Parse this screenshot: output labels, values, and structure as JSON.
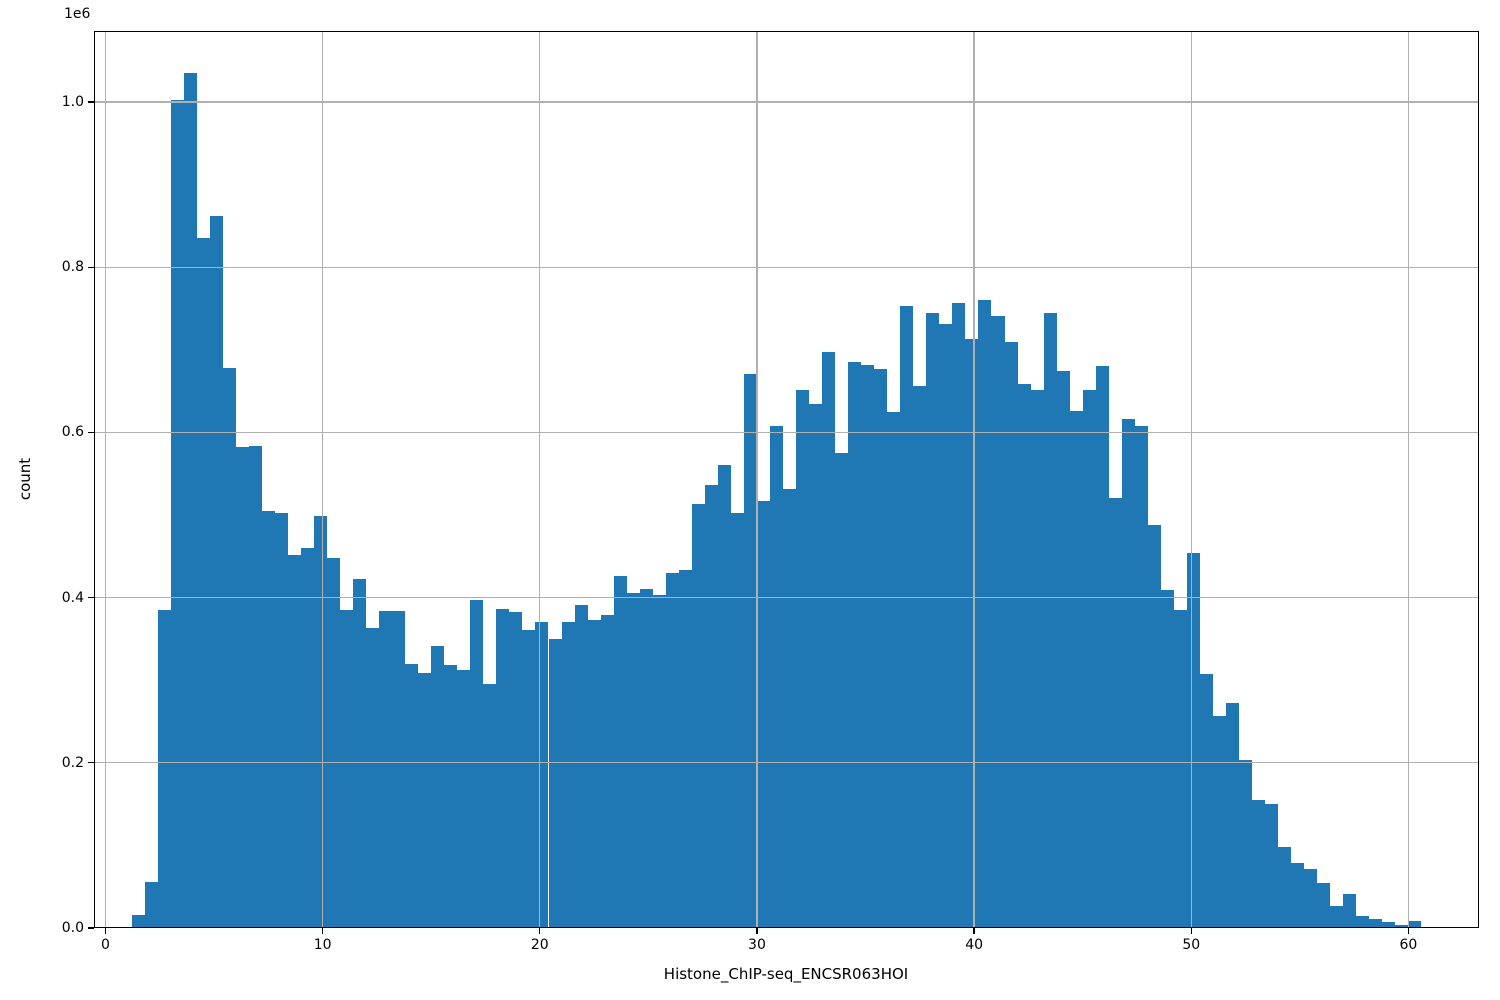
{
  "chart_data": {
    "type": "bar",
    "subtype": "histogram",
    "title": "",
    "xlabel": "Histone_ChIP-seq_ENCSR063HOI",
    "ylabel": "count",
    "offset_text": "1e6",
    "bar_color": "#1f77b4",
    "grid": true,
    "grid_color": "#b0b0b0",
    "legend": "none",
    "bin_start": 1.2,
    "bin_width": 0.6,
    "counts": [
      16000,
      56000,
      385000,
      1002000,
      1035000,
      835000,
      862000,
      678000,
      582000,
      584000,
      505000,
      503000,
      452000,
      460000,
      499000,
      448000,
      385000,
      423000,
      363000,
      384000,
      384000,
      320000,
      309000,
      341000,
      319000,
      312000,
      397000,
      296000,
      386000,
      383000,
      361000,
      371000,
      350000,
      370000,
      391000,
      373000,
      379000,
      426000,
      406000,
      410000,
      403000,
      430000,
      433000,
      513000,
      536000,
      560000,
      502000,
      671000,
      517000,
      608000,
      531000,
      651000,
      634000,
      697000,
      575000,
      685000,
      682000,
      677000,
      625000,
      753000,
      656000,
      744000,
      731000,
      757000,
      713000,
      760000,
      741000,
      709000,
      659000,
      651000,
      745000,
      674000,
      626000,
      651000,
      681000,
      520000,
      616000,
      608000,
      488000,
      409000,
      385000,
      454000,
      307000,
      257000,
      272000,
      203000,
      155000,
      150000,
      98000,
      79000,
      72000,
      55000,
      27000,
      41000,
      15000,
      11000,
      7000,
      4000,
      9000
    ],
    "xlim": [
      -0.53,
      63.25
    ],
    "ylim": [
      0,
      1086000
    ],
    "x_ticks": [
      0,
      10,
      20,
      30,
      40,
      50,
      60
    ],
    "x_tick_labels": [
      "0",
      "10",
      "20",
      "30",
      "40",
      "50",
      "60"
    ],
    "y_ticks": [
      0,
      200000,
      400000,
      600000,
      800000,
      1000000
    ],
    "y_tick_labels": [
      "0.0",
      "0.2",
      "0.4",
      "0.6",
      "0.8",
      "1.0"
    ]
  }
}
